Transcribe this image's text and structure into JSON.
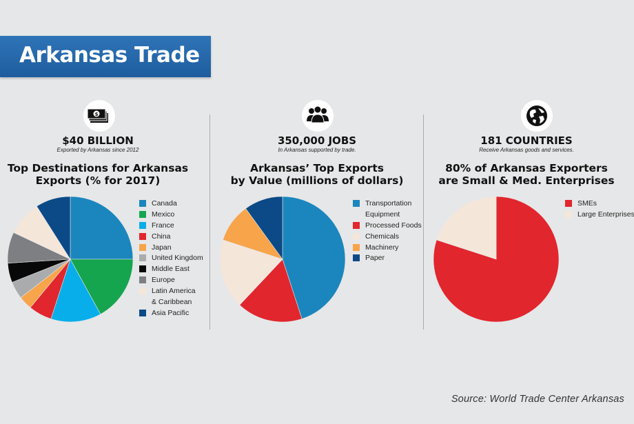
{
  "banner": {
    "title": "Arkansas Trade"
  },
  "panels": [
    {
      "icon": "money-icon",
      "stat": "$40 BILLION",
      "sub": "Exported by Arkansas since 2012",
      "title": [
        "Top Destinations for Arkansas",
        "Exports (% for 2017)"
      ]
    },
    {
      "icon": "people-icon",
      "stat": "350,000 JOBS",
      "sub": "In Arkansas supported by trade.",
      "title": [
        "Arkansas’ Top Exports",
        "by Value (millions of dollars)"
      ]
    },
    {
      "icon": "globe-icon",
      "stat": "181 COUNTRIES",
      "sub": "Receive Arkansas goods and services.",
      "title": [
        "80% of Arkansas Exporters",
        "are Small & Med. Enterprises"
      ]
    }
  ],
  "chart_data": [
    {
      "type": "pie",
      "title": "Top Destinations for Arkansas Exports (% for 2017)",
      "start_angle_deg": 0,
      "slices": [
        {
          "label": "Canada",
          "value": 25,
          "color": "#1b86bd"
        },
        {
          "label": "Mexico",
          "value": 17,
          "color": "#15a54f"
        },
        {
          "label": "France",
          "value": 13,
          "color": "#07aeea"
        },
        {
          "label": "China",
          "value": 6,
          "color": "#e1262e"
        },
        {
          "label": "Japan",
          "value": 3.5,
          "color": "#f7a44a"
        },
        {
          "label": "United Kingdom",
          "value": 4.5,
          "color": "#a9abad"
        },
        {
          "label": "Middle East",
          "value": 5,
          "color": "#080808"
        },
        {
          "label": "Europe",
          "value": 8,
          "color": "#7d7f82"
        },
        {
          "label": "Latin America & Caribbean",
          "legend_lines": [
            "Latin America",
            "& Caribbean"
          ],
          "value": 9,
          "color": "#f5e6da"
        },
        {
          "label": "Asia Pacific",
          "value": 9,
          "color": "#0b4a86"
        }
      ]
    },
    {
      "type": "pie",
      "title": "Arkansas’ Top Exports by Value (millions of dollars)",
      "start_angle_deg": 0,
      "slices": [
        {
          "label": "Transportation Equipment",
          "legend_lines": [
            "Transportation",
            "Equipment"
          ],
          "value": 45,
          "color": "#1b86bd"
        },
        {
          "label": "Processed Foods",
          "value": 17,
          "color": "#e1262e"
        },
        {
          "label": "Chemicals",
          "value": 18,
          "color": "#f5e6da"
        },
        {
          "label": "Machinery",
          "value": 10,
          "color": "#f7a44a"
        },
        {
          "label": "Paper",
          "value": 10,
          "color": "#0b4a86"
        }
      ]
    },
    {
      "type": "pie",
      "title": "80% of Arkansas Exporters are Small & Med. Enterprises",
      "start_angle_deg": 0,
      "slices": [
        {
          "label": "SMEs",
          "value": 80,
          "color": "#e1262e"
        },
        {
          "label": "Large Enterprises",
          "value": 20,
          "color": "#f5e6da"
        }
      ]
    }
  ],
  "source": "Source: World Trade Center Arkansas"
}
